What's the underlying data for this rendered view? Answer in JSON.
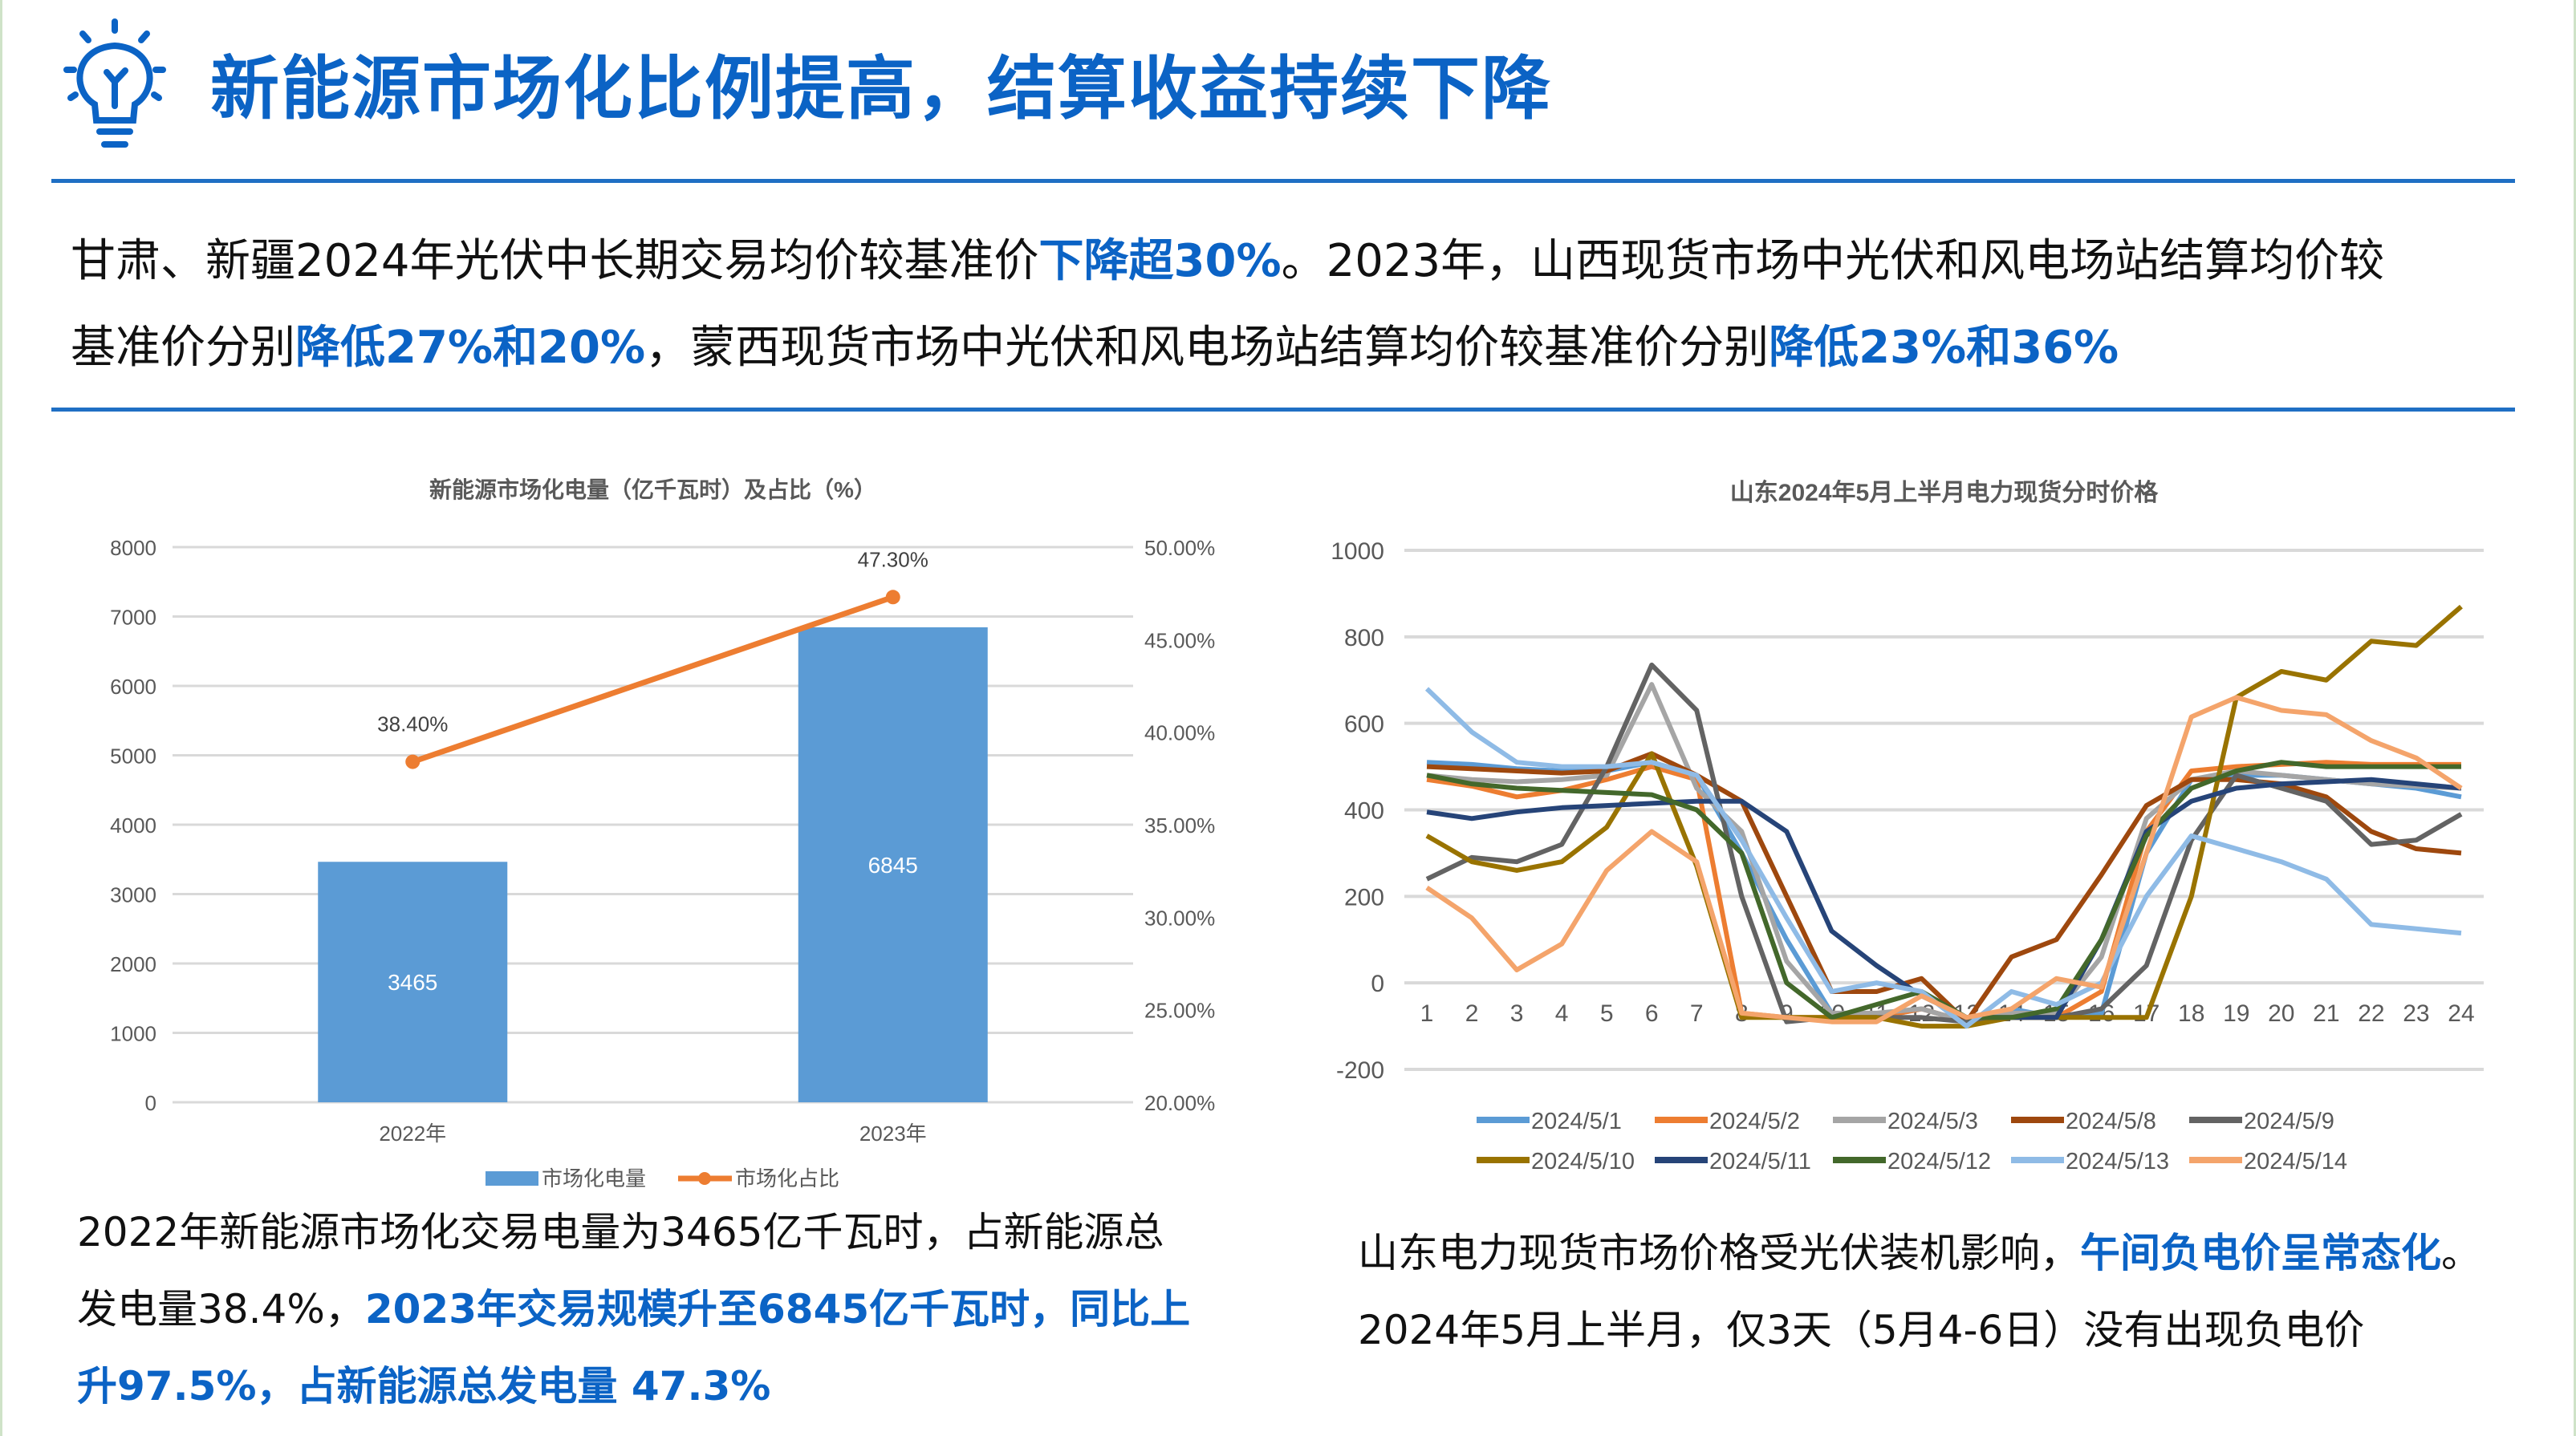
{
  "header": {
    "title": "新能源市场化比例提高，结算收益持续下降",
    "icon": "lightbulb-icon",
    "accent": "#0b63c5"
  },
  "summary": {
    "line1": [
      {
        "t": "甘肃、新疆2024年光伏中长期交易均价较基准价",
        "hl": false
      },
      {
        "t": "下降超30%",
        "hl": true
      },
      {
        "t": "。2023年，山西现货市场中光伏和风电场站结算均价较",
        "hl": false
      }
    ],
    "line2": [
      {
        "t": "基准价分别",
        "hl": false
      },
      {
        "t": "降低27%和20%",
        "hl": true
      },
      {
        "t": "，蒙西现货市场中光伏和风电场站结算均价较基准价分别",
        "hl": false
      },
      {
        "t": "降低23%和36%",
        "hl": true
      }
    ]
  },
  "left_note": {
    "line1": [
      {
        "t": "2022年新能源市场化交易电量为3465亿千瓦时，占新能源总",
        "hl": false
      }
    ],
    "line2": [
      {
        "t": "发电量38.4%，",
        "hl": false
      },
      {
        "t": "2023年交易规模升至6845亿千瓦时，同比上",
        "hl": true
      }
    ],
    "line3": [
      {
        "t": "升97.5%，占新能源总发电量 47.3%",
        "hl": true
      }
    ]
  },
  "right_note": {
    "line1": [
      {
        "t": "山东电力现货市场价格受光伏装机影响，",
        "hl": false
      },
      {
        "t": "午间负电价呈常态化",
        "hl": true
      },
      {
        "t": "。",
        "hl": false
      }
    ],
    "line2": [
      {
        "t": "2024年5月上半月，仅3天（5月4-6日）没有出现负电价",
        "hl": false
      }
    ]
  },
  "chart_data": [
    {
      "type": "bar",
      "title": "新能源市场化电量（亿千瓦时）及占比（%）",
      "categories": [
        "2022年",
        "2023年"
      ],
      "series": [
        {
          "name": "市场化电量",
          "type": "bar",
          "axis": "left",
          "values": [
            3465,
            6845
          ],
          "labels": [
            "3465",
            "6845"
          ],
          "color": "#5b9bd5"
        },
        {
          "name": "市场化占比",
          "type": "line",
          "axis": "right",
          "values": [
            38.4,
            47.3
          ],
          "labels": [
            "38.40%",
            "47.30%"
          ],
          "color": "#ed7d31"
        }
      ],
      "ylim": [
        0,
        8000
      ],
      "yticks": [
        "0",
        "1000",
        "2000",
        "3000",
        "4000",
        "5000",
        "6000",
        "7000",
        "8000"
      ],
      "y2lim": [
        20,
        50
      ],
      "y2ticks": [
        "20.00%",
        "25.00%",
        "30.00%",
        "35.00%",
        "40.00%",
        "45.00%",
        "50.00%"
      ],
      "grid": true,
      "legend": "bottom"
    },
    {
      "type": "line",
      "title": "山东2024年5月上半月电力现货分时价格",
      "x": [
        "1",
        "2",
        "3",
        "4",
        "5",
        "6",
        "7",
        "8",
        "9",
        "10",
        "11",
        "12",
        "13",
        "14",
        "15",
        "16",
        "17",
        "18",
        "19",
        "20",
        "21",
        "22",
        "23",
        "24"
      ],
      "ylim": [
        -200,
        1000
      ],
      "yticks": [
        "-200",
        "0",
        "200",
        "400",
        "600",
        "800",
        "1000"
      ],
      "grid": true,
      "legend": "bottom",
      "series": [
        {
          "name": "2024/5/1",
          "color": "#5b9bd5",
          "values": [
            510,
            505,
            495,
            490,
            490,
            510,
            480,
            300,
            100,
            -70,
            -80,
            -60,
            -90,
            -60,
            -80,
            -70,
            300,
            470,
            480,
            480,
            470,
            460,
            450,
            430
          ]
        },
        {
          "name": "2024/5/2",
          "color": "#ed7d31",
          "values": [
            470,
            455,
            430,
            445,
            470,
            500,
            470,
            -70,
            -80,
            -80,
            -80,
            -60,
            -90,
            -80,
            -80,
            -20,
            350,
            490,
            500,
            505,
            510,
            505,
            505,
            505
          ]
        },
        {
          "name": "2024/5/3",
          "color": "#a5a5a5",
          "values": [
            480,
            470,
            465,
            470,
            480,
            690,
            450,
            350,
            50,
            -70,
            -70,
            -60,
            -90,
            -70,
            -70,
            60,
            380,
            470,
            490,
            480,
            470,
            460,
            455,
            450
          ]
        },
        {
          "name": "2024/5/8",
          "color": "#9e480e",
          "values": [
            500,
            495,
            490,
            485,
            490,
            530,
            480,
            420,
            200,
            -20,
            -20,
            10,
            -90,
            60,
            100,
            250,
            410,
            470,
            470,
            460,
            430,
            350,
            310,
            300
          ]
        },
        {
          "name": "2024/5/9",
          "color": "#636363",
          "values": [
            240,
            290,
            280,
            320,
            500,
            735,
            630,
            200,
            -90,
            -80,
            -80,
            -80,
            -90,
            -80,
            -80,
            -60,
            40,
            330,
            480,
            450,
            420,
            320,
            330,
            390
          ]
        },
        {
          "name": "2024/5/10",
          "color": "#997300",
          "values": [
            340,
            280,
            260,
            280,
            360,
            530,
            270,
            -80,
            -80,
            -80,
            -80,
            -100,
            -100,
            -80,
            -80,
            -80,
            -80,
            200,
            660,
            720,
            700,
            790,
            780,
            870
          ]
        },
        {
          "name": "2024/5/11",
          "color": "#264478",
          "values": [
            395,
            380,
            395,
            405,
            410,
            415,
            420,
            420,
            350,
            120,
            40,
            -30,
            -80,
            -80,
            -80,
            100,
            350,
            420,
            450,
            460,
            465,
            470,
            460,
            450
          ]
        },
        {
          "name": "2024/5/12",
          "color": "#43682b",
          "values": [
            480,
            460,
            450,
            445,
            440,
            435,
            400,
            300,
            0,
            -80,
            -50,
            -20,
            -80,
            -80,
            -60,
            100,
            340,
            450,
            490,
            510,
            500,
            500,
            500,
            500
          ]
        },
        {
          "name": "2024/5/13",
          "color": "#8fbbe6",
          "values": [
            680,
            580,
            510,
            500,
            500,
            510,
            480,
            330,
            150,
            -20,
            0,
            -20,
            -100,
            -20,
            -50,
            0,
            200,
            340,
            310,
            280,
            240,
            135,
            125,
            115
          ]
        },
        {
          "name": "2024/5/14",
          "color": "#f4a46b",
          "values": [
            220,
            150,
            30,
            90,
            260,
            350,
            280,
            -70,
            -80,
            -90,
            -90,
            -30,
            -80,
            -60,
            10,
            -10,
            300,
            615,
            660,
            630,
            620,
            560,
            520,
            450
          ]
        }
      ]
    }
  ]
}
